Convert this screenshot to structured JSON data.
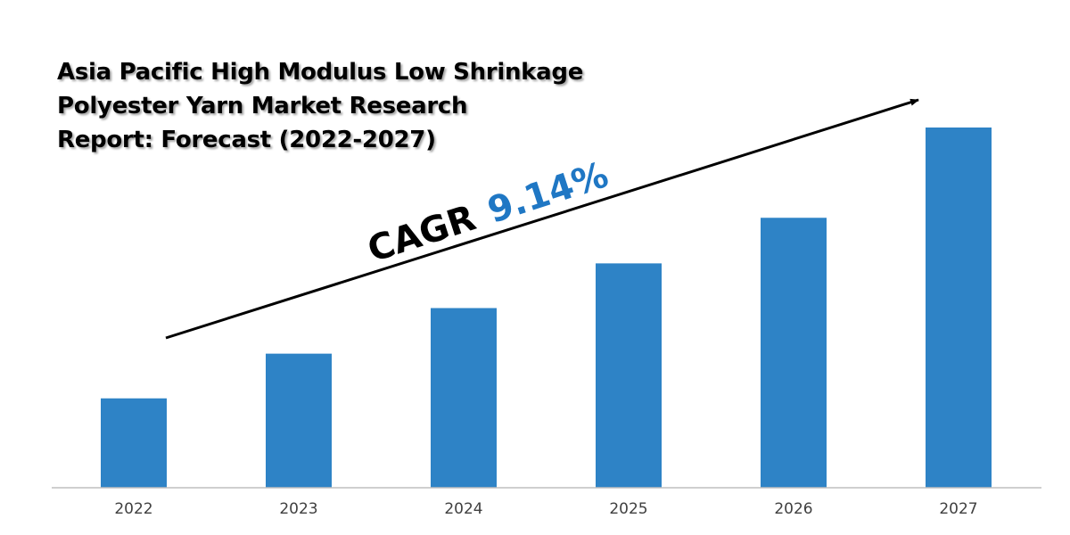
{
  "title_lines": [
    "Asia Pacific High Modulus Low Shrinkage",
    "Polyester Yarn Market Research",
    "Report: Forecast (2022-2027)"
  ],
  "cagr": {
    "label": "CAGR",
    "value": "9.14%"
  },
  "colors": {
    "bar": "#2e83c6",
    "cagr_value": "#1f77c4",
    "axis": "#bfbfbf",
    "arrow": "#000000"
  },
  "chart_data": {
    "type": "bar",
    "title": "Asia Pacific High Modulus Low Shrinkage Polyester Yarn Market Research Report: Forecast (2022-2027)",
    "categories": [
      "2022",
      "2023",
      "2024",
      "2025",
      "2026",
      "2027"
    ],
    "values": [
      100,
      150,
      201,
      251,
      302,
      403
    ],
    "xlabel": "",
    "ylabel": "",
    "ylim": [
      0,
      403
    ],
    "grid": false,
    "legend": "none"
  }
}
